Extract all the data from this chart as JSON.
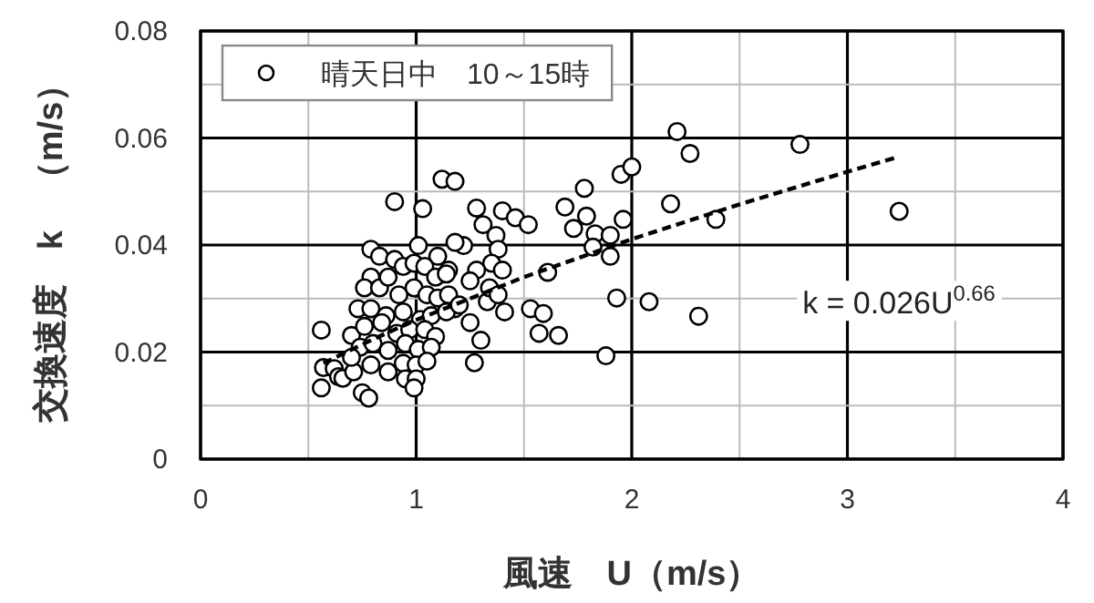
{
  "chart_data": {
    "type": "scatter",
    "xlabel": "風速　U（m/s）",
    "ylabel": "交換速度　k　（m/s）",
    "xlim": [
      0,
      4
    ],
    "ylim": [
      0,
      0.08
    ],
    "xticks": [
      0,
      {
        "value": 0.5,
        "label": null
      },
      1,
      {
        "value": 1.5,
        "label": null
      },
      2,
      {
        "value": 2.5,
        "label": null
      },
      3,
      {
        "value": 3.5,
        "label": null
      },
      4
    ],
    "yticks": [
      0,
      {
        "value": 0.01,
        "label": null
      },
      0.02,
      {
        "value": 0.03,
        "label": null
      },
      0.04,
      {
        "value": 0.05,
        "label": null
      },
      0.06,
      {
        "value": 0.07,
        "label": null
      },
      0.08
    ],
    "grid": true,
    "legend": "top left",
    "annotations": [
      "k = 0.026U$^{0.66}$"
    ],
    "series": [
      {
        "name": "晴天日中　10～15時",
        "marker": "circle",
        "color": "#000000",
        "x": [
          0.56,
          0.56,
          0.57,
          0.62,
          0.64,
          0.66,
          0.7,
          0.71,
          0.75,
          0.78,
          0.79,
          0.79,
          0.9,
          1.03,
          1.01,
          1.12,
          1.18,
          1.28,
          1.31,
          1.4,
          1.46,
          1.52,
          1.37,
          1.38,
          1.35,
          1.4,
          1.41,
          1.22,
          1.18,
          1.15,
          1.1,
          1.28,
          1.33,
          1.3,
          1.27,
          1.25,
          1.18,
          1.53,
          1.59,
          1.57,
          1.66,
          1.61,
          1.69,
          1.73,
          1.78,
          1.79,
          1.83,
          1.9,
          1.9,
          1.96,
          1.95,
          2.0,
          1.93,
          1.88,
          2.08,
          2.18,
          2.21,
          2.27,
          2.31,
          2.39,
          2.78,
          3.24,
          1.82,
          0.83,
          0.9,
          0.94,
          0.99,
          1.04,
          1.09,
          1.14,
          0.76,
          0.83,
          0.87,
          0.92,
          0.99,
          1.05,
          1.1,
          0.73,
          0.79,
          0.86,
          0.94,
          1.02,
          1.07,
          1.14,
          0.76,
          0.84,
          0.91,
          0.97,
          1.04,
          1.09,
          0.74,
          0.8,
          0.87,
          0.95,
          1.01,
          1.07,
          0.79,
          0.87,
          0.94,
          1.0,
          1.05,
          0.95,
          1.0,
          0.99,
          0.7,
          1.15,
          1.2,
          1.25,
          1.34,
          1.38
        ],
        "values": [
          0.0241,
          0.0133,
          0.0171,
          0.0169,
          0.0154,
          0.0151,
          0.0231,
          0.0163,
          0.0124,
          0.0114,
          0.0392,
          0.034,
          0.0481,
          0.0468,
          0.0399,
          0.0523,
          0.0519,
          0.0469,
          0.0438,
          0.0464,
          0.0451,
          0.0438,
          0.0418,
          0.0392,
          0.0366,
          0.0353,
          0.0275,
          0.0399,
          0.0405,
          0.0353,
          0.0379,
          0.0353,
          0.0294,
          0.0222,
          0.018,
          0.0255,
          0.0281,
          0.0281,
          0.0272,
          0.0235,
          0.0231,
          0.0349,
          0.0471,
          0.0431,
          0.0506,
          0.0454,
          0.0421,
          0.0418,
          0.0379,
          0.0448,
          0.0532,
          0.0546,
          0.0301,
          0.0193,
          0.0294,
          0.0477,
          0.0612,
          0.0571,
          0.0267,
          0.0448,
          0.0588,
          0.0463,
          0.0396,
          0.0379,
          0.0373,
          0.036,
          0.0366,
          0.036,
          0.034,
          0.0346,
          0.032,
          0.032,
          0.034,
          0.0307,
          0.032,
          0.0307,
          0.0301,
          0.0281,
          0.0281,
          0.0268,
          0.0275,
          0.0261,
          0.0268,
          0.0275,
          0.0248,
          0.0255,
          0.0235,
          0.0242,
          0.0242,
          0.0229,
          0.0209,
          0.0216,
          0.0203,
          0.0216,
          0.0205,
          0.0209,
          0.0176,
          0.0163,
          0.0179,
          0.0176,
          0.0183,
          0.015,
          0.015,
          0.0133,
          0.019,
          0.0307,
          0.0288,
          0.0333,
          0.032,
          0.0307
        ]
      },
      {
        "type": "line",
        "color": "#000000",
        "line_style": "dashed",
        "x": [
          0.57,
          0.8,
          1,
          1.5,
          2,
          2.5,
          3,
          3.24
        ],
        "values": [
          0.0179,
          0.0224,
          0.026,
          0.034,
          0.0411,
          0.0476,
          0.0537,
          0.0565
        ]
      }
    ]
  }
}
